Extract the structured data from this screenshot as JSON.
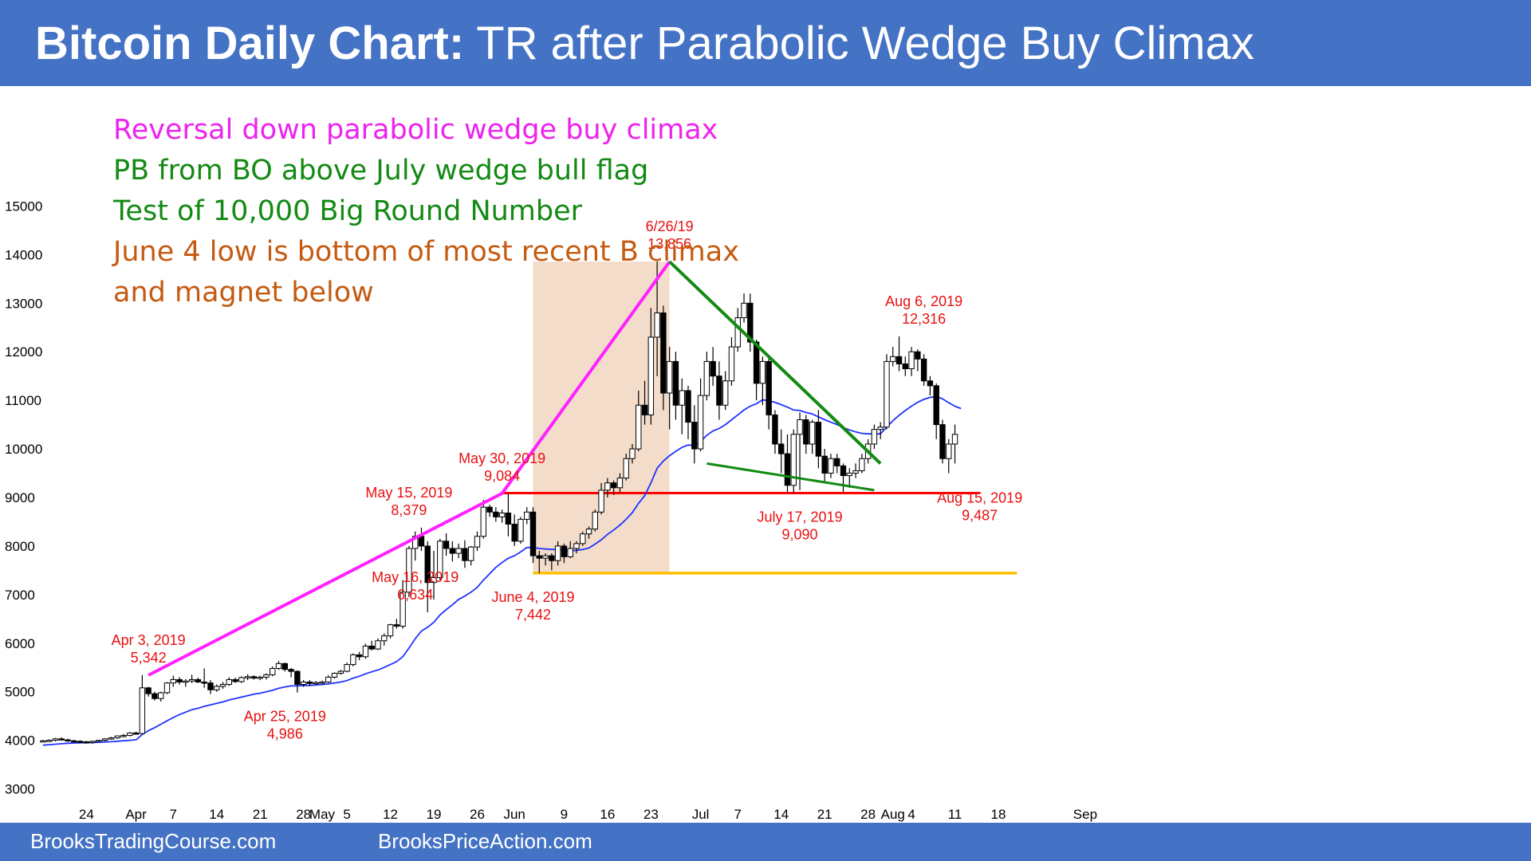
{
  "header": {
    "title_bold": "Bitcoin Daily Chart:",
    "title_rest": " TR after Parabolic Wedge Buy Climax"
  },
  "footer": {
    "left": "BrooksTradingCourse.com",
    "right": "BrooksPriceAction.com"
  },
  "notes": [
    {
      "text": "Reversal down parabolic wedge buy climax",
      "color": "#ee22ee"
    },
    {
      "text": "PB from BO above July wedge bull flag",
      "color": "#138a13"
    },
    {
      "text": "Test of 10,000 Big Round Number",
      "color": "#138a13"
    },
    {
      "text": "June 4 low is bottom of most recent B climax",
      "color": "#c55a11"
    },
    {
      "text": "and magnet below",
      "color": "#c55a11"
    }
  ],
  "colors": {
    "header_bg": "#4472c4",
    "annotation_red": "#e8100f",
    "wedge_magenta": "#ff21ff",
    "wedge_green": "#138a13",
    "support_red": "#ff0000",
    "magnet_yellow": "#ffbf00",
    "ema_blue": "#1f33ff",
    "shade": "#f4dccb"
  },
  "chart_data": {
    "type": "candlestick",
    "ylim": [
      2500,
      15500
    ],
    "yticks": [
      3000,
      4000,
      5000,
      6000,
      7000,
      8000,
      9000,
      10000,
      11000,
      12000,
      13000,
      14000,
      15000
    ],
    "xlim": [
      "2019-03-17",
      "2019-09-05"
    ],
    "xtick_labels": [
      {
        "date": "2019-03-24",
        "label": "24"
      },
      {
        "date": "2019-04-01",
        "label": "Apr"
      },
      {
        "date": "2019-04-07",
        "label": "7"
      },
      {
        "date": "2019-04-14",
        "label": "14"
      },
      {
        "date": "2019-04-21",
        "label": "21"
      },
      {
        "date": "2019-04-28",
        "label": "28"
      },
      {
        "date": "2019-05-01",
        "label": "May"
      },
      {
        "date": "2019-05-05",
        "label": "5"
      },
      {
        "date": "2019-05-12",
        "label": "12"
      },
      {
        "date": "2019-05-19",
        "label": "19"
      },
      {
        "date": "2019-05-26",
        "label": "26"
      },
      {
        "date": "2019-06-01",
        "label": "Jun"
      },
      {
        "date": "2019-06-09",
        "label": "9"
      },
      {
        "date": "2019-06-16",
        "label": "16"
      },
      {
        "date": "2019-06-23",
        "label": "23"
      },
      {
        "date": "2019-07-01",
        "label": "Jul"
      },
      {
        "date": "2019-07-07",
        "label": "7"
      },
      {
        "date": "2019-07-14",
        "label": "14"
      },
      {
        "date": "2019-07-21",
        "label": "21"
      },
      {
        "date": "2019-07-28",
        "label": "28"
      },
      {
        "date": "2019-08-01",
        "label": "Aug"
      },
      {
        "date": "2019-08-04",
        "label": "4"
      },
      {
        "date": "2019-08-11",
        "label": "11"
      },
      {
        "date": "2019-08-18",
        "label": "18"
      },
      {
        "date": "2019-09-01",
        "label": "Sep"
      }
    ],
    "candles_start": "2019-03-17",
    "candles": [
      [
        3980,
        4010,
        3960,
        3990
      ],
      [
        3990,
        4020,
        3970,
        4000
      ],
      [
        4000,
        4050,
        3980,
        4030
      ],
      [
        4030,
        4060,
        4000,
        4010
      ],
      [
        4010,
        4030,
        3970,
        3990
      ],
      [
        3990,
        4010,
        3960,
        3980
      ],
      [
        3980,
        4000,
        3950,
        3970
      ],
      [
        3970,
        3990,
        3940,
        3960
      ],
      [
        3960,
        3990,
        3930,
        3980
      ],
      [
        3980,
        4010,
        3960,
        4000
      ],
      [
        4000,
        4040,
        3980,
        4030
      ],
      [
        4030,
        4070,
        4010,
        4050
      ],
      [
        4050,
        4100,
        4030,
        4090
      ],
      [
        4090,
        4130,
        4060,
        4100
      ],
      [
        4100,
        4170,
        4080,
        4150
      ],
      [
        4150,
        4180,
        4120,
        4140
      ],
      [
        4140,
        5342,
        4120,
        5080
      ],
      [
        5080,
        5100,
        4900,
        4960
      ],
      [
        4960,
        5000,
        4820,
        4860
      ],
      [
        4860,
        5000,
        4800,
        4980
      ],
      [
        4980,
        5200,
        4950,
        5180
      ],
      [
        5180,
        5330,
        5100,
        5250
      ],
      [
        5250,
        5300,
        5150,
        5200
      ],
      [
        5200,
        5260,
        5100,
        5220
      ],
      [
        5220,
        5350,
        5180,
        5250
      ],
      [
        5250,
        5290,
        5180,
        5200
      ],
      [
        5200,
        5480,
        5080,
        5180
      ],
      [
        5180,
        5240,
        4950,
        5040
      ],
      [
        5040,
        5150,
        5000,
        5110
      ],
      [
        5110,
        5200,
        5060,
        5150
      ],
      [
        5150,
        5300,
        5120,
        5250
      ],
      [
        5250,
        5290,
        5180,
        5210
      ],
      [
        5210,
        5320,
        5180,
        5290
      ],
      [
        5290,
        5360,
        5240,
        5310
      ],
      [
        5310,
        5340,
        5250,
        5280
      ],
      [
        5280,
        5330,
        5240,
        5300
      ],
      [
        5300,
        5380,
        5250,
        5350
      ],
      [
        5350,
        5520,
        5320,
        5480
      ],
      [
        5480,
        5630,
        5450,
        5580
      ],
      [
        5580,
        5600,
        5420,
        5460
      ],
      [
        5460,
        5490,
        5300,
        5420
      ],
      [
        5420,
        5440,
        4986,
        5150
      ],
      [
        5150,
        5240,
        5100,
        5200
      ],
      [
        5200,
        5240,
        5120,
        5170
      ],
      [
        5170,
        5220,
        5140,
        5190
      ],
      [
        5190,
        5230,
        5150,
        5200
      ],
      [
        5200,
        5340,
        5180,
        5300
      ],
      [
        5300,
        5400,
        5270,
        5380
      ],
      [
        5380,
        5450,
        5350,
        5420
      ],
      [
        5420,
        5600,
        5400,
        5560
      ],
      [
        5560,
        5790,
        5520,
        5760
      ],
      [
        5760,
        5820,
        5650,
        5720
      ],
      [
        5720,
        5990,
        5680,
        5940
      ],
      [
        5940,
        6050,
        5850,
        5880
      ],
      [
        5880,
        6100,
        5860,
        6050
      ],
      [
        6050,
        6200,
        5950,
        6150
      ],
      [
        6150,
        6400,
        6100,
        6380
      ],
      [
        6380,
        6500,
        6300,
        6350
      ],
      [
        6350,
        7300,
        6300,
        7050
      ],
      [
        7050,
        8000,
        6950,
        7950
      ],
      [
        7950,
        8300,
        7700,
        8200
      ],
      [
        8200,
        8379,
        7900,
        8000
      ],
      [
        8000,
        8100,
        6634,
        7250
      ],
      [
        7250,
        7900,
        6900,
        7350
      ],
      [
        7350,
        8150,
        7300,
        8100
      ],
      [
        8100,
        8260,
        7800,
        7950
      ],
      [
        7950,
        8100,
        7680,
        7850
      ],
      [
        7850,
        8050,
        7750,
        7950
      ],
      [
        7950,
        8120,
        7550,
        7700
      ],
      [
        7700,
        8000,
        7600,
        7980
      ],
      [
        7980,
        8300,
        7900,
        8200
      ],
      [
        8200,
        8950,
        8150,
        8800
      ],
      [
        8800,
        8850,
        8600,
        8700
      ],
      [
        8700,
        8800,
        8500,
        8600
      ],
      [
        8600,
        8750,
        8480,
        8680
      ],
      [
        8680,
        9084,
        8200,
        8450
      ],
      [
        8450,
        8650,
        8000,
        8100
      ],
      [
        8100,
        8600,
        8050,
        8550
      ],
      [
        8550,
        8800,
        8450,
        8700
      ],
      [
        8700,
        8800,
        7650,
        7800
      ],
      [
        7800,
        7900,
        7442,
        7750
      ],
      [
        7750,
        7850,
        7600,
        7800
      ],
      [
        7800,
        7850,
        7500,
        7700
      ],
      [
        7700,
        8100,
        7600,
        8000
      ],
      [
        8000,
        8050,
        7650,
        7780
      ],
      [
        7780,
        8100,
        7750,
        7950
      ],
      [
        7950,
        8100,
        7850,
        8050
      ],
      [
        8050,
        8300,
        8000,
        8250
      ],
      [
        8250,
        8400,
        8150,
        8350
      ],
      [
        8350,
        8750,
        8300,
        8700
      ],
      [
        8700,
        9300,
        8650,
        9150
      ],
      [
        9150,
        9400,
        9000,
        9300
      ],
      [
        9300,
        9350,
        9050,
        9200
      ],
      [
        9200,
        9500,
        9100,
        9400
      ],
      [
        9400,
        9900,
        9350,
        9800
      ],
      [
        9800,
        10100,
        9700,
        10000
      ],
      [
        10000,
        11200,
        9950,
        10900
      ],
      [
        10900,
        11400,
        10500,
        10700
      ],
      [
        10700,
        12900,
        10500,
        12300
      ],
      [
        12300,
        13856,
        11500,
        12800
      ],
      [
        12800,
        12950,
        10800,
        11150
      ],
      [
        11150,
        12100,
        10400,
        11800
      ],
      [
        11800,
        12000,
        10600,
        10900
      ],
      [
        10900,
        11450,
        10300,
        11200
      ],
      [
        11200,
        11300,
        10200,
        10550
      ],
      [
        10550,
        10900,
        9700,
        10000
      ],
      [
        10000,
        11450,
        9950,
        11100
      ],
      [
        11100,
        12000,
        11000,
        11800
      ],
      [
        11800,
        12100,
        11300,
        11500
      ],
      [
        11500,
        11800,
        10600,
        10900
      ],
      [
        10900,
        11600,
        10800,
        11400
      ],
      [
        11400,
        12300,
        11300,
        12100
      ],
      [
        12100,
        12900,
        12000,
        12700
      ],
      [
        12700,
        13200,
        12600,
        13000
      ],
      [
        13000,
        13200,
        12000,
        12200
      ],
      [
        12200,
        12250,
        11000,
        11350
      ],
      [
        11350,
        11900,
        10900,
        11800
      ],
      [
        11800,
        11900,
        10400,
        10700
      ],
      [
        10700,
        10800,
        9900,
        10100
      ],
      [
        10100,
        10400,
        9500,
        9900
      ],
      [
        9900,
        10300,
        9100,
        9250
      ],
      [
        9250,
        10400,
        9100,
        10300
      ],
      [
        10300,
        10750,
        9150,
        10600
      ],
      [
        10600,
        10700,
        9900,
        10100
      ],
      [
        10100,
        10600,
        9900,
        10550
      ],
      [
        10550,
        10800,
        9600,
        9850
      ],
      [
        9850,
        10000,
        9300,
        9500
      ],
      [
        9500,
        9900,
        9400,
        9800
      ],
      [
        9800,
        9900,
        9500,
        9650
      ],
      [
        9650,
        9700,
        9100,
        9450
      ],
      [
        9450,
        9600,
        9200,
        9500
      ],
      [
        9500,
        9700,
        9400,
        9550
      ],
      [
        9550,
        9900,
        9500,
        9800
      ],
      [
        9800,
        10200,
        9700,
        10100
      ],
      [
        10100,
        10500,
        10000,
        10400
      ],
      [
        10400,
        10550,
        10200,
        10450
      ],
      [
        10450,
        11950,
        10400,
        11800
      ],
      [
        11800,
        12100,
        11700,
        11900
      ],
      [
        11900,
        12316,
        11600,
        11750
      ],
      [
        11750,
        11900,
        11500,
        11650
      ],
      [
        11650,
        12100,
        11500,
        12000
      ],
      [
        12000,
        12050,
        11600,
        11850
      ],
      [
        11850,
        11950,
        11300,
        11400
      ],
      [
        11400,
        11500,
        11100,
        11300
      ],
      [
        11300,
        11350,
        10200,
        10500
      ],
      [
        10500,
        10600,
        9700,
        9800
      ],
      [
        9800,
        10200,
        9500,
        10100
      ],
      [
        10100,
        10500,
        9700,
        10300
      ]
    ],
    "ema_20": [
      3900,
      3910,
      3920,
      3930,
      3940,
      3945,
      3950,
      3950,
      3955,
      3960,
      3965,
      3970,
      3980,
      3990,
      4000,
      4010,
      4120,
      4200,
      4260,
      4330,
      4400,
      4470,
      4530,
      4580,
      4630,
      4660,
      4700,
      4730,
      4760,
      4790,
      4830,
      4860,
      4890,
      4920,
      4950,
      4970,
      5000,
      5030,
      5070,
      5100,
      5120,
      5120,
      5130,
      5130,
      5140,
      5150,
      5160,
      5180,
      5200,
      5230,
      5280,
      5320,
      5370,
      5410,
      5450,
      5500,
      5560,
      5620,
      5720,
      5900,
      6090,
      6250,
      6330,
      6430,
      6580,
      6690,
      6790,
      6900,
      6970,
      7050,
      7150,
      7300,
      7430,
      7560,
      7660,
      7750,
      7800,
      7880,
      7970,
      7970,
      7950,
      7940,
      7930,
      7930,
      7910,
      7900,
      7910,
      7930,
      7960,
      8040,
      8130,
      8240,
      8330,
      8430,
      8550,
      8690,
      8880,
      9040,
      9300,
      9600,
      9750,
      9860,
      9950,
      10030,
      10080,
      10070,
      10150,
      10280,
      10370,
      10420,
      10500,
      10600,
      10700,
      10800,
      10880,
      10930,
      11010,
      10990,
      10960,
      10910,
      10860,
      10800,
      10790,
      10750,
      10720,
      10660,
      10600,
      10550,
      10500,
      10440,
      10390,
      10350,
      10320,
      10310,
      10310,
      10310,
      10450,
      10580,
      10690,
      10790,
      10880,
      10960,
      11020,
      11060,
      11080,
      11030,
      10950,
      10880,
      10830
    ],
    "shaded_zone": {
      "from": "2019-06-04",
      "to": "2019-06-26",
      "ylim": [
        7442,
        13856
      ]
    },
    "lines": [
      {
        "name": "parabolic-wedge-trendline",
        "points": [
          [
            "2019-04-03",
            5342
          ],
          [
            "2019-05-30",
            9084
          ],
          [
            "2019-06-26",
            13856
          ]
        ]
      },
      {
        "name": "wedge-bull-flag-upper",
        "points": [
          [
            "2019-06-26",
            13856
          ],
          [
            "2019-07-30",
            9700
          ]
        ]
      },
      {
        "name": "wedge-bull-flag-lower",
        "points": [
          [
            "2019-07-02",
            9700
          ],
          [
            "2019-07-29",
            9150
          ]
        ]
      },
      {
        "name": "support-line",
        "points": [
          [
            "2019-05-30",
            9090
          ],
          [
            "2019-08-15",
            9090
          ]
        ]
      },
      {
        "name": "magnet-line",
        "points": [
          [
            "2019-06-04",
            7442
          ],
          [
            "2019-08-21",
            7442
          ]
        ]
      }
    ],
    "annotations": [
      {
        "date": "2019-04-03",
        "dx": 0,
        "line1": "Apr 3, 2019",
        "line2": "5,342",
        "y": 5342,
        "position": "above"
      },
      {
        "date": "2019-04-25",
        "dx": 0,
        "line1": "Apr 25, 2019",
        "line2": "4,986",
        "y": 4986,
        "position": "below"
      },
      {
        "date": "2019-05-15",
        "dx": 0,
        "line1": "May 15, 2019",
        "line2": "8,379",
        "y": 8379,
        "position": "above"
      },
      {
        "date": "2019-05-16",
        "dx": 0,
        "line1": "May 16, 2019",
        "line2": "6,634",
        "y": 6634,
        "position": "above"
      },
      {
        "date": "2019-05-30",
        "dx": 0,
        "line1": "May 30, 2019",
        "line2": "9,084",
        "y": 9084,
        "position": "above"
      },
      {
        "date": "2019-06-04",
        "dx": 0,
        "line1": "June 4, 2019",
        "line2": "7,442",
        "y": 7442,
        "position": "below"
      },
      {
        "date": "2019-06-26",
        "dx": 0,
        "line1": "6/26/19",
        "line2": "13,856",
        "y": 13856,
        "position": "above"
      },
      {
        "date": "2019-07-17",
        "dx": 0,
        "line1": "July 17, 2019",
        "line2": "9,090",
        "y": 9090,
        "position": "below"
      },
      {
        "date": "2019-08-06",
        "dx": 0,
        "line1": "Aug 6, 2019",
        "line2": "12,316",
        "y": 12316,
        "position": "above"
      },
      {
        "date": "2019-08-15",
        "dx": 0,
        "line1": "Aug 15, 2019",
        "line2": "9,487",
        "y": 9487,
        "position": "below"
      }
    ]
  }
}
